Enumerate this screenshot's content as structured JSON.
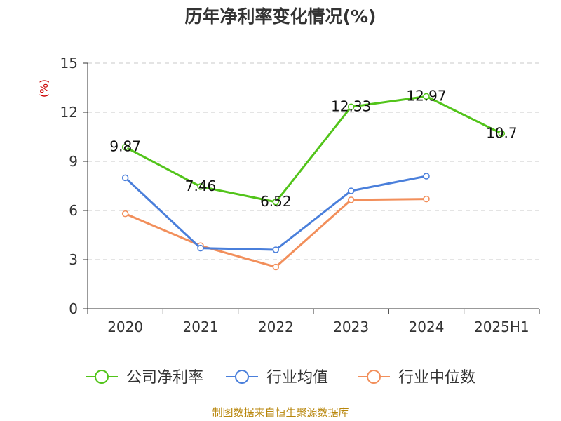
{
  "chart_data": {
    "type": "line",
    "title": "历年净利率变化情况(%)",
    "ylabel": "(%)",
    "xlabel": "",
    "categories": [
      "2020",
      "2021",
      "2022",
      "2023",
      "2024",
      "2025H1"
    ],
    "ylim": [
      0,
      15
    ],
    "yticks": [
      0,
      3,
      6,
      9,
      12,
      15
    ],
    "grid": true,
    "legend_position": "bottom",
    "series": [
      {
        "name": "公司净利率",
        "color": "#52c41a",
        "values": [
          9.87,
          7.46,
          6.52,
          12.33,
          12.97,
          10.7
        ],
        "labels": [
          "9.87",
          "7.46",
          "6.52",
          "12.33",
          "12.97",
          "10.7"
        ]
      },
      {
        "name": "行业均值",
        "color": "#4a7fdb",
        "values": [
          8.0,
          3.7,
          3.6,
          7.2,
          8.1,
          null
        ]
      },
      {
        "name": "行业中位数",
        "color": "#f28f5b",
        "values": [
          5.8,
          3.85,
          2.55,
          6.65,
          6.7,
          null
        ]
      }
    ]
  },
  "footer": "制图数据来自恒生聚源数据库"
}
